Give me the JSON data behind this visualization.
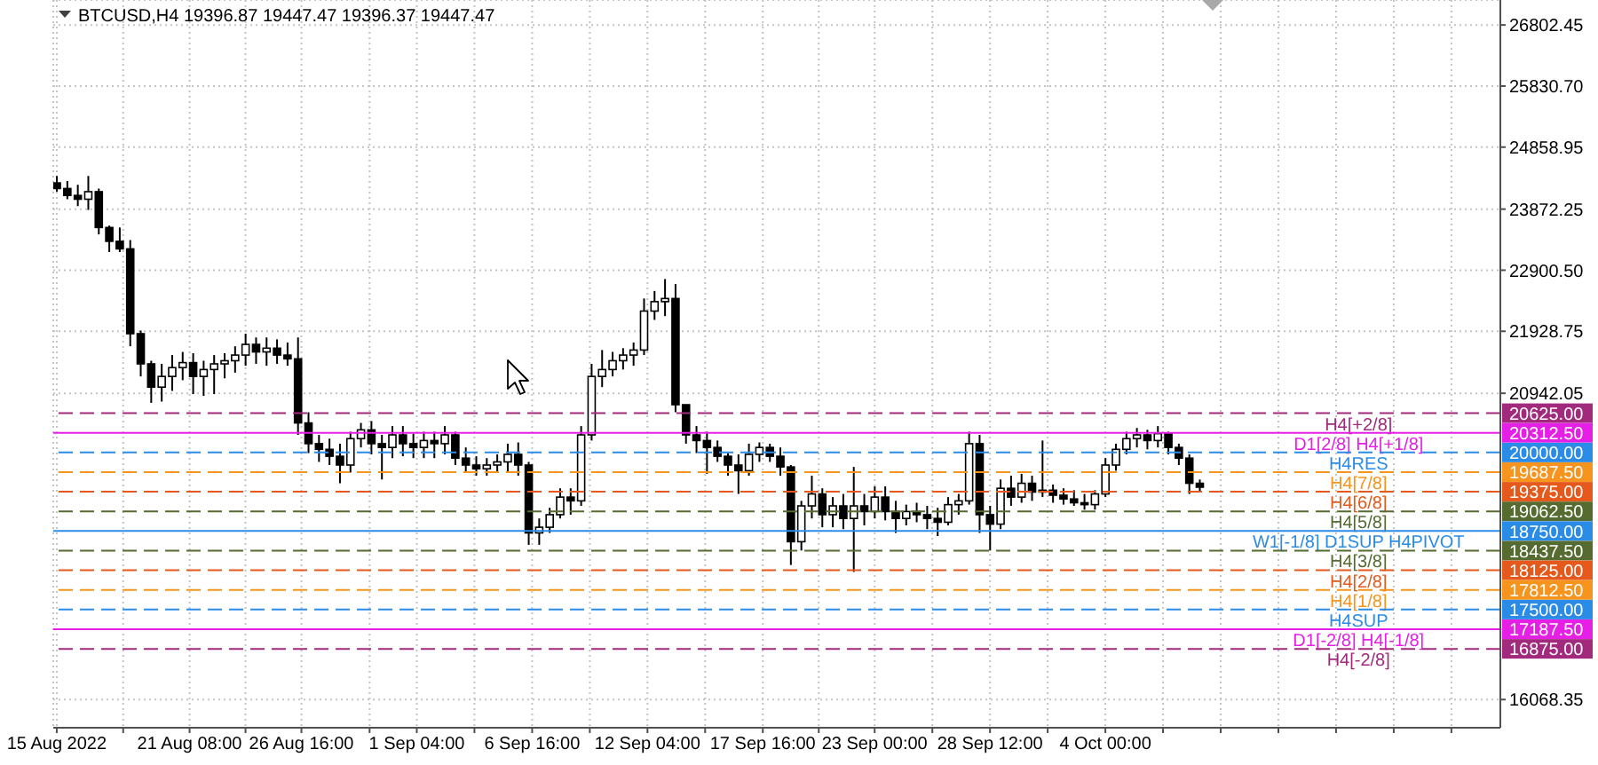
{
  "chart_data": {
    "type": "candlestick",
    "title": "BTCUSD,H4 19396.87 19447.47 19396.37 19447.47",
    "color": "#000000",
    "x": [
      "2022-08-15T00:00",
      "2022-08-15T12:00",
      "2022-08-16T00:00",
      "2022-08-16T12:00",
      "2022-08-17T00:00",
      "2022-08-17T12:00",
      "2022-08-18T00:00",
      "2022-08-18T12:00",
      "2022-08-19T00:00",
      "2022-08-19T12:00",
      "2022-08-20T00:00",
      "2022-08-20T12:00",
      "2022-08-21T00:00",
      "2022-08-21T12:00",
      "2022-08-22T00:00",
      "2022-08-22T12:00",
      "2022-08-23T00:00",
      "2022-08-23T12:00",
      "2022-08-24T00:00",
      "2022-08-24T12:00",
      "2022-08-25T00:00",
      "2022-08-25T12:00",
      "2022-08-26T00:00",
      "2022-08-26T12:00",
      "2022-08-27T00:00",
      "2022-08-27T12:00",
      "2022-08-28T00:00",
      "2022-08-28T12:00",
      "2022-08-29T00:00",
      "2022-08-29T12:00",
      "2022-08-30T00:00",
      "2022-08-30T12:00",
      "2022-08-31T00:00",
      "2022-08-31T12:00",
      "2022-09-01T00:00",
      "2022-09-01T12:00",
      "2022-09-02T00:00",
      "2022-09-02T12:00",
      "2022-09-03T00:00",
      "2022-09-03T12:00",
      "2022-09-04T00:00",
      "2022-09-04T12:00",
      "2022-09-05T00:00",
      "2022-09-05T12:00",
      "2022-09-06T00:00",
      "2022-09-06T12:00",
      "2022-09-07T00:00",
      "2022-09-07T12:00",
      "2022-09-08T00:00",
      "2022-09-08T12:00",
      "2022-09-09T00:00",
      "2022-09-09T12:00",
      "2022-09-10T00:00",
      "2022-09-10T12:00",
      "2022-09-11T00:00",
      "2022-09-11T12:00",
      "2022-09-12T00:00",
      "2022-09-12T12:00",
      "2022-09-13T00:00",
      "2022-09-13T12:00",
      "2022-09-14T00:00",
      "2022-09-14T12:00",
      "2022-09-15T00:00",
      "2022-09-15T12:00",
      "2022-09-16T00:00",
      "2022-09-16T12:00",
      "2022-09-17T00:00",
      "2022-09-17T12:00",
      "2022-09-18T00:00",
      "2022-09-18T12:00",
      "2022-09-19T00:00",
      "2022-09-19T12:00",
      "2022-09-20T00:00",
      "2022-09-20T12:00",
      "2022-09-21T00:00",
      "2022-09-21T12:00",
      "2022-09-22T00:00",
      "2022-09-22T12:00",
      "2022-09-23T00:00",
      "2022-09-23T12:00",
      "2022-09-24T00:00",
      "2022-09-24T12:00",
      "2022-09-25T00:00",
      "2022-09-25T12:00",
      "2022-09-26T00:00",
      "2022-09-26T12:00",
      "2022-09-27T00:00",
      "2022-09-27T12:00",
      "2022-09-28T00:00",
      "2022-09-28T12:00",
      "2022-09-29T00:00",
      "2022-09-29T12:00",
      "2022-09-30T00:00",
      "2022-09-30T12:00",
      "2022-10-01T00:00",
      "2022-10-01T12:00",
      "2022-10-02T00:00",
      "2022-10-02T12:00",
      "2022-10-03T00:00",
      "2022-10-03T12:00",
      "2022-10-04T00:00",
      "2022-10-04T12:00",
      "2022-10-05T00:00",
      "2022-10-05T12:00",
      "2022-10-06T00:00",
      "2022-10-06T12:00",
      "2022-10-07T00:00",
      "2022-10-07T12:00",
      "2022-10-08T00:00",
      "2022-10-08T12:00"
    ],
    "ohlc": [
      [
        24290,
        24400,
        24150,
        24200
      ],
      [
        24200,
        24320,
        24030,
        24090
      ],
      [
        24090,
        24260,
        23920,
        24030
      ],
      [
        24030,
        24400,
        23860,
        24150
      ],
      [
        24150,
        24200,
        23470,
        23580
      ],
      [
        23580,
        23610,
        23190,
        23360
      ],
      [
        23360,
        23580,
        23190,
        23240
      ],
      [
        23240,
        23380,
        21690,
        21890
      ],
      [
        21890,
        21940,
        21210,
        21410
      ],
      [
        21410,
        21460,
        20790,
        21040
      ],
      [
        21040,
        21410,
        20810,
        21210
      ],
      [
        21210,
        21550,
        20980,
        21350
      ],
      [
        21350,
        21600,
        21150,
        21430
      ],
      [
        21430,
        21580,
        20930,
        21210
      ],
      [
        21210,
        21460,
        20900,
        21320
      ],
      [
        21320,
        21550,
        20930,
        21410
      ],
      [
        21410,
        21580,
        21180,
        21460
      ],
      [
        21460,
        21690,
        21270,
        21550
      ],
      [
        21550,
        21890,
        21380,
        21720
      ],
      [
        21720,
        21830,
        21410,
        21600
      ],
      [
        21600,
        21830,
        21380,
        21660
      ],
      [
        21660,
        21800,
        21410,
        21550
      ],
      [
        21550,
        21750,
        21380,
        21490
      ],
      [
        21490,
        21830,
        20280,
        20470
      ],
      [
        20470,
        20640,
        19990,
        20140
      ],
      [
        20140,
        20280,
        19850,
        20050
      ],
      [
        20050,
        20220,
        19800,
        19940
      ],
      [
        19940,
        20140,
        19510,
        19800
      ],
      [
        19800,
        20330,
        19680,
        20220
      ],
      [
        20220,
        20470,
        20080,
        20360
      ],
      [
        20360,
        20500,
        19970,
        20140
      ],
      [
        20140,
        20280,
        19570,
        20080
      ],
      [
        20080,
        20420,
        19910,
        20280
      ],
      [
        20280,
        20420,
        19940,
        20140
      ],
      [
        20140,
        20300,
        19910,
        20080
      ],
      [
        20080,
        20330,
        19910,
        20190
      ],
      [
        20190,
        20330,
        19910,
        20140
      ],
      [
        20140,
        20420,
        19970,
        20280
      ],
      [
        20280,
        20330,
        19800,
        19910
      ],
      [
        19910,
        20080,
        19680,
        19800
      ],
      [
        19800,
        19940,
        19630,
        19740
      ],
      [
        19740,
        19910,
        19630,
        19800
      ],
      [
        19800,
        19970,
        19680,
        19850
      ],
      [
        19850,
        20140,
        19680,
        19970
      ],
      [
        19970,
        20160,
        19630,
        19800
      ],
      [
        19800,
        19850,
        18530,
        18720
      ],
      [
        18720,
        18950,
        18530,
        18810
      ],
      [
        18810,
        19120,
        18720,
        19010
      ],
      [
        19010,
        19430,
        18950,
        19290
      ],
      [
        19290,
        19430,
        19010,
        19230
      ],
      [
        19230,
        20420,
        19150,
        20280
      ],
      [
        20280,
        21410,
        20190,
        21210
      ],
      [
        21210,
        21630,
        21040,
        21320
      ],
      [
        21320,
        21600,
        21210,
        21460
      ],
      [
        21460,
        21660,
        21320,
        21550
      ],
      [
        21550,
        21750,
        21380,
        21630
      ],
      [
        21630,
        22450,
        21550,
        22250
      ],
      [
        22250,
        22570,
        22110,
        22400
      ],
      [
        22400,
        22760,
        22170,
        22450
      ],
      [
        22450,
        22680,
        20640,
        20760
      ],
      [
        20760,
        20760,
        20140,
        20280
      ],
      [
        20280,
        20420,
        19990,
        20190
      ],
      [
        20190,
        20330,
        19660,
        20080
      ],
      [
        20080,
        20190,
        19850,
        19940
      ],
      [
        19940,
        19990,
        19630,
        19800
      ],
      [
        19800,
        19970,
        19340,
        19710
      ],
      [
        19710,
        20140,
        19630,
        19970
      ],
      [
        19970,
        20160,
        19850,
        20080
      ],
      [
        20080,
        20140,
        19850,
        19940
      ],
      [
        19940,
        20080,
        19630,
        19770
      ],
      [
        19770,
        19800,
        18210,
        18580
      ],
      [
        18580,
        19230,
        18440,
        19150
      ],
      [
        19150,
        19630,
        18950,
        19340
      ],
      [
        19340,
        19430,
        18810,
        19010
      ],
      [
        19010,
        19290,
        18810,
        19150
      ],
      [
        19150,
        19340,
        18780,
        18950
      ],
      [
        18950,
        19770,
        18100,
        19150
      ],
      [
        19150,
        19340,
        18840,
        19060
      ],
      [
        19060,
        19460,
        18950,
        19290
      ],
      [
        19290,
        19460,
        18920,
        19060
      ],
      [
        19060,
        19230,
        18720,
        18950
      ],
      [
        18950,
        19170,
        18840,
        19060
      ],
      [
        19060,
        19200,
        18890,
        19010
      ],
      [
        19010,
        19150,
        18780,
        18950
      ],
      [
        18950,
        19120,
        18670,
        18890
      ],
      [
        18890,
        19290,
        18840,
        19170
      ],
      [
        19170,
        19340,
        19010,
        19230
      ],
      [
        19230,
        20330,
        19170,
        20140
      ],
      [
        20140,
        20280,
        18720,
        19010
      ],
      [
        19010,
        19150,
        18440,
        18860
      ],
      [
        18860,
        19570,
        18780,
        19430
      ],
      [
        19430,
        19630,
        19150,
        19290
      ],
      [
        19290,
        19660,
        19200,
        19510
      ],
      [
        19510,
        19630,
        19230,
        19370
      ],
      [
        19370,
        20190,
        19290,
        19400
      ],
      [
        19400,
        19490,
        19200,
        19320
      ],
      [
        19320,
        19430,
        19170,
        19260
      ],
      [
        19260,
        19400,
        19150,
        19200
      ],
      [
        19200,
        19340,
        19090,
        19170
      ],
      [
        19170,
        19400,
        19090,
        19340
      ],
      [
        19340,
        19910,
        19290,
        19800
      ],
      [
        19800,
        20140,
        19710,
        20050
      ],
      [
        20050,
        20330,
        19970,
        20220
      ],
      [
        20220,
        20390,
        20080,
        20280
      ],
      [
        20280,
        20360,
        20050,
        20190
      ],
      [
        20190,
        20420,
        20080,
        20300
      ],
      [
        20300,
        20330,
        19970,
        20080
      ],
      [
        20080,
        20140,
        19800,
        19910
      ],
      [
        19910,
        19970,
        19340,
        19510
      ],
      [
        19510,
        19570,
        19370,
        19447.47
      ]
    ],
    "xlim": [
      "2022-08-14T20:00",
      "2022-10-22T20:00"
    ],
    "xticks": [
      {
        "value": "2022-08-15T00:00",
        "label": "15 Aug 2022"
      },
      {
        "value": "2022-08-18T04:00",
        "label": null
      },
      {
        "value": "2022-08-21T08:00",
        "label": "21 Aug 08:00"
      },
      {
        "value": "2022-08-24T00:00",
        "label": null
      },
      {
        "value": "2022-08-26T16:00",
        "label": "26 Aug 16:00"
      },
      {
        "value": "2022-08-29T22:00",
        "label": null
      },
      {
        "value": "2022-09-01T04:00",
        "label": "1 Sep 04:00"
      },
      {
        "value": "2022-09-03T22:00",
        "label": null
      },
      {
        "value": "2022-09-06T16:00",
        "label": "6 Sep 16:00"
      },
      {
        "value": "2022-09-09T10:00",
        "label": null
      },
      {
        "value": "2022-09-12T04:00",
        "label": "12 Sep 04:00"
      },
      {
        "value": "2022-09-14T22:00",
        "label": null
      },
      {
        "value": "2022-09-17T16:00",
        "label": "17 Sep 16:00"
      },
      {
        "value": "2022-09-20T08:00",
        "label": null
      },
      {
        "value": "2022-09-23T00:00",
        "label": "23 Sep 00:00"
      },
      {
        "value": "2022-09-25T18:00",
        "label": null
      },
      {
        "value": "2022-09-28T12:00",
        "label": "28 Sep 12:00"
      },
      {
        "value": "2022-10-01T06:00",
        "label": null
      },
      {
        "value": "2022-10-04T00:00",
        "label": "4 Oct 00:00"
      },
      {
        "value": "2022-10-06T18:00",
        "label": null
      },
      {
        "value": "2022-10-09T12:00",
        "label": null
      },
      {
        "value": "2022-10-12T06:00",
        "label": null
      },
      {
        "value": "2022-10-15T00:00",
        "label": null
      },
      {
        "value": "2022-10-17T18:00",
        "label": null
      },
      {
        "value": "2022-10-20T12:00",
        "label": null
      }
    ],
    "ylim": [
      15620,
      27200
    ],
    "yticks": [
      26802.45,
      {
        "value": 25830.7,
        "label": "25830.70"
      },
      24858.95,
      23872.25,
      {
        "value": 22900.5,
        "label": "22900.50"
      },
      21928.75,
      20942.05,
      16068.35
    ],
    "grid": true,
    "ref_lines": [
      {
        "axis": "y",
        "value": 20625,
        "label": "H4[+2/8]",
        "color": "#a12a7d",
        "line_style": "dashed"
      },
      {
        "axis": "y",
        "value": 20312.5,
        "label": "D1[2/8] H4[+1/8]",
        "color": "#e51fe5",
        "line_style": "solid"
      },
      {
        "axis": "y",
        "value": 20000,
        "label": "H4RES",
        "color": "#2b8ce8",
        "line_style": "dashed"
      },
      {
        "axis": "y",
        "value": 19687.5,
        "label": "H4[7/8]",
        "color": "#f7941d",
        "line_style": "dashed"
      },
      {
        "axis": "y",
        "value": 19375,
        "label": "H4[6/8]",
        "color": "#e55a1c",
        "line_style": "dashed"
      },
      {
        "axis": "y",
        "value": 19062.5,
        "label": "H4[5/8]",
        "color": "#556b2f",
        "line_style": "dashed"
      },
      {
        "axis": "y",
        "value": 18750,
        "label": "W1[-1/8] D1SUP H4PIVOT",
        "color": "#2b8ce8",
        "line_style": "solid"
      },
      {
        "axis": "y",
        "value": 18437.5,
        "label": "H4[3/8]",
        "color": "#556b2f",
        "line_style": "dashed"
      },
      {
        "axis": "y",
        "value": 18125,
        "label": "H4[2/8]",
        "color": "#e55a1c",
        "line_style": "dashed"
      },
      {
        "axis": "y",
        "value": 17812.5,
        "label": "H4[1/8]",
        "color": "#f7941d",
        "line_style": "dashed"
      },
      {
        "axis": "y",
        "value": 17500,
        "label": "H4SUP",
        "color": "#2b8ce8",
        "line_style": "dashed"
      },
      {
        "axis": "y",
        "value": 17187.5,
        "label": "D1[-2/8] H4[-1/8]",
        "color": "#e51fe5",
        "line_style": "solid"
      },
      {
        "axis": "y",
        "value": 16875,
        "label": "H4[-2/8]",
        "color": "#a12a7d",
        "line_style": "dashed"
      }
    ],
    "annotations": [
      {
        "text": "20625.00",
        "x": "2022-10-22T20:00",
        "y": 20625
      },
      {
        "text": "20312.50",
        "x": "2022-10-22T20:00",
        "y": 20312.5
      },
      {
        "text": "20000.00",
        "x": "2022-10-22T20:00",
        "y": 20000
      },
      {
        "text": "19687.50",
        "x": "2022-10-22T20:00",
        "y": 19687.5
      },
      {
        "text": "19375.00",
        "x": "2022-10-22T20:00",
        "y": 19375
      },
      {
        "text": "19062.50",
        "x": "2022-10-22T20:00",
        "y": 19062.5
      },
      {
        "text": "18750.00",
        "x": "2022-10-22T20:00",
        "y": 18750
      },
      {
        "text": "18437.50",
        "x": "2022-10-22T20:00",
        "y": 18437.5
      },
      {
        "text": "18125.00",
        "x": "2022-10-22T20:00",
        "y": 18125
      },
      {
        "text": "17812.50",
        "x": "2022-10-22T20:00",
        "y": 17812.5
      },
      {
        "text": "17500.00",
        "x": "2022-10-22T20:00",
        "y": 17500
      },
      {
        "text": "17187.50",
        "x": "2022-10-22T20:00",
        "y": 17187.5
      },
      {
        "text": "16875.00",
        "x": "2022-10-22T20:00",
        "y": 16875
      }
    ]
  }
}
